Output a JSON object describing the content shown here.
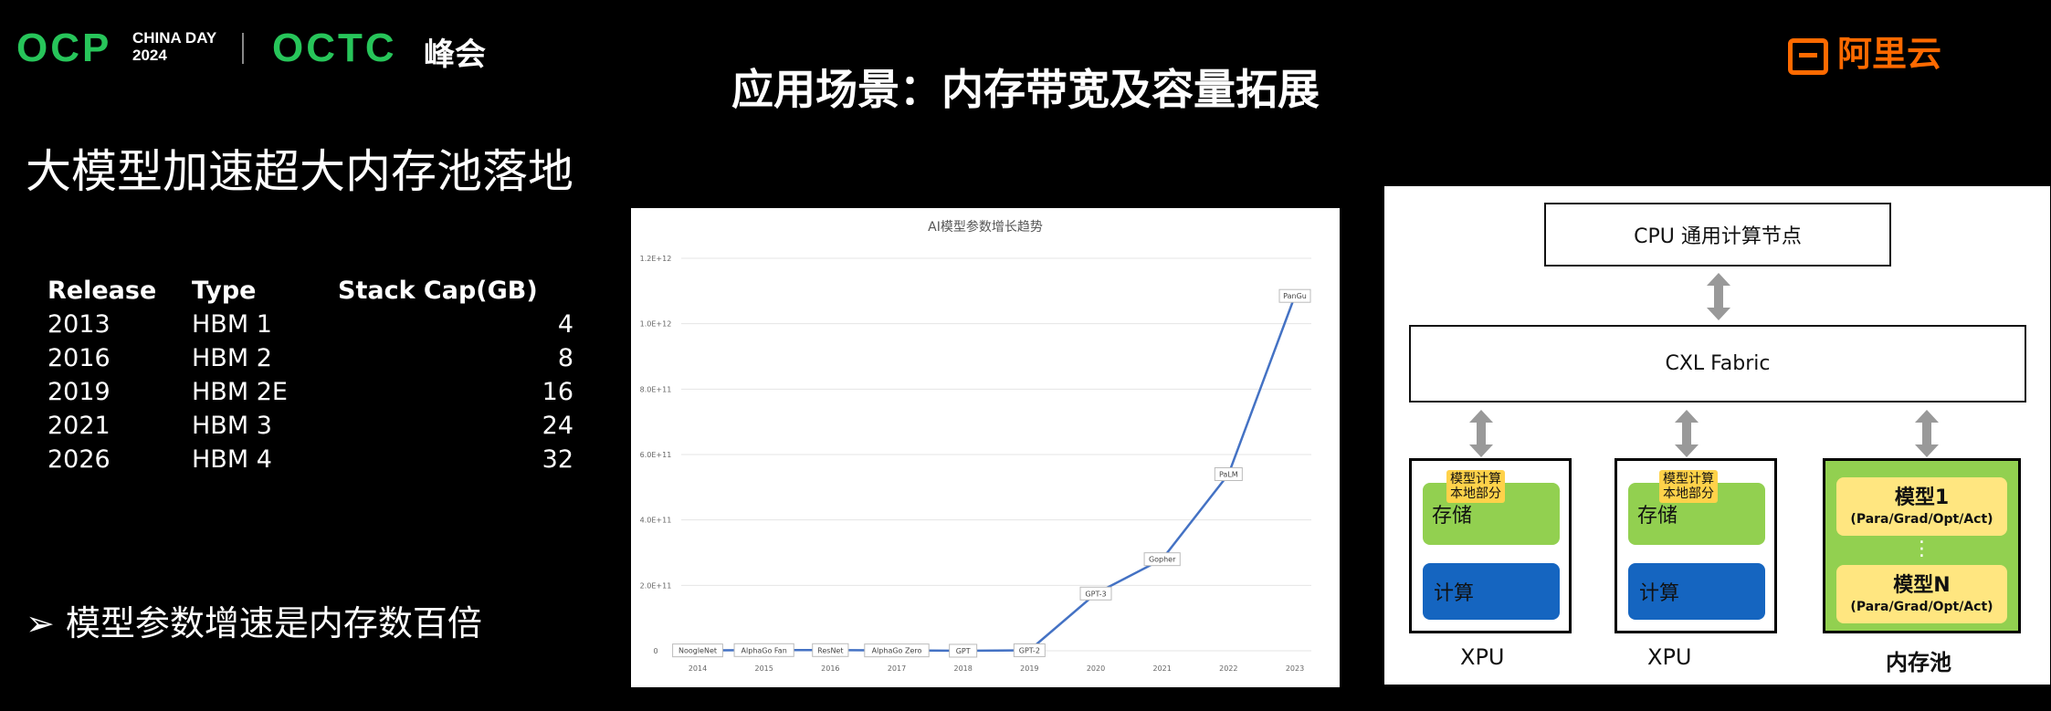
{
  "header": {
    "ocp": "OCP",
    "ocp_sub1": "CHINA DAY",
    "ocp_sub2": "2024",
    "octc": "OCTC",
    "octc_sub": "峰会",
    "aliyun": "阿里云"
  },
  "title": "应用场景：内存带宽及容量拓展",
  "subtitle": "大模型加速超大内存池落地",
  "table": {
    "headers": [
      "Release",
      "Type",
      "Stack Cap(GB)"
    ],
    "rows": [
      [
        "2013",
        "HBM 1",
        "4"
      ],
      [
        "2016",
        "HBM 2",
        "8"
      ],
      [
        "2019",
        "HBM 2E",
        "16"
      ],
      [
        "2021",
        "HBM 3",
        "24"
      ],
      [
        "2026",
        "HBM 4",
        "32"
      ]
    ]
  },
  "bullet": "➢ 模型参数增速是内存数百倍",
  "chart_data": {
    "type": "line",
    "title": "AI模型参数增长趋势",
    "x": [
      2014,
      2015,
      2016,
      2017,
      2018,
      2019,
      2020,
      2021,
      2022,
      2023
    ],
    "y_ticks": [
      "0",
      "2.0E+11",
      "4.0E+11",
      "6.0E+11",
      "8.0E+11",
      "1.0E+12",
      "1.2E+12"
    ],
    "ylim": [
      0,
      1200000000000.0
    ],
    "series": [
      {
        "values": [
          1000000000.0,
          2000000000.0,
          2000000000.0,
          1000000000.0,
          110000000.0,
          1500000000.0,
          175000000000.0,
          280000000000.0,
          540000000000.0,
          1085000000000.0
        ]
      }
    ],
    "point_labels": [
      "NoogleNet",
      "AlphaGo Fan",
      "ResNet",
      "AlphaGo Zero",
      "GPT",
      "GPT-2",
      "GPT-3",
      "Gopher",
      "PaLM",
      "PanGu"
    ],
    "color": "#4472c4",
    "grid": true
  },
  "diagram": {
    "cpu": "CPU 通用计算节点",
    "fabric": "CXL Fabric",
    "tag_l1": "模型计算",
    "tag_l2": "本地部分",
    "storage": "存储",
    "compute": "计算",
    "xpu": "XPU",
    "pool_label": "内存池",
    "model1": "模型1",
    "modelN": "模型N",
    "model_detail": "(Para/Grad/Opt/Act)",
    "dots": "⋮"
  }
}
